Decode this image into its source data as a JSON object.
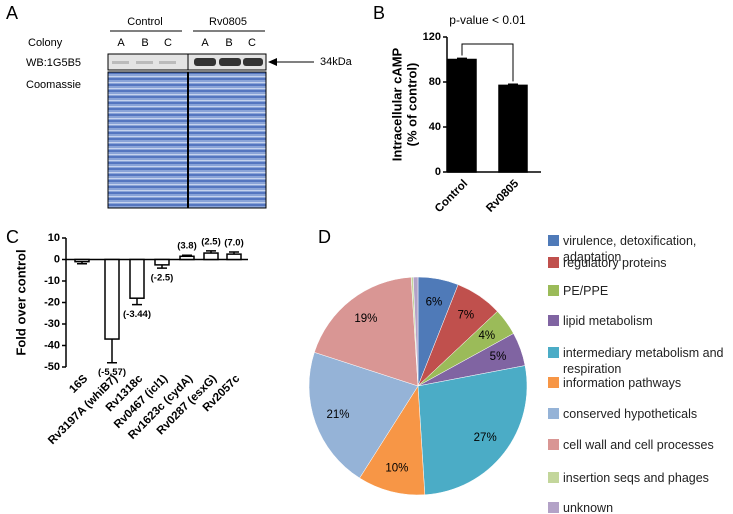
{
  "panels": [
    "A",
    "B",
    "C",
    "D"
  ],
  "blot": {
    "groups": [
      "Control",
      "Rv0805"
    ],
    "colonies": [
      "A",
      "B",
      "C"
    ],
    "row_label": "Colony",
    "wb_label": "WB:1G5B5",
    "stain_label": "Coomassie",
    "marker": "34kDa"
  },
  "chart_data": [
    {
      "type": "bar",
      "categories": [
        "Control",
        "Rv0805"
      ],
      "values": [
        100,
        77
      ],
      "errors": [
        1,
        1
      ],
      "color": "#000000",
      "ylabel": [
        "Intracellular cAMP",
        "(% of control)"
      ],
      "ylim": [
        0,
        120
      ],
      "yticks": [
        0,
        40,
        80,
        120
      ],
      "annotation": "p-value < 0.01"
    },
    {
      "type": "bar",
      "categories": [
        "16S",
        "Rv3197A (whiB7)",
        "Rv1318c",
        "Rv0467 (icl1)",
        "Rv1623c (cydA)",
        "Rv0287 (esxG)",
        "Rv2057c"
      ],
      "values": [
        -1,
        -37,
        -18,
        -2.5,
        1.5,
        3,
        2.5
      ],
      "errors": [
        1,
        11,
        3,
        1.5,
        0.5,
        1,
        1
      ],
      "color": "#000000",
      "annotations": [
        null,
        "(-5.57)",
        "(-3.44)",
        "(-2.5)",
        "(3.8)",
        "(2.5)",
        "(7.0)"
      ],
      "ylabel": "Fold over control",
      "ylim": [
        -50,
        10
      ],
      "yticks": [
        -50,
        -40,
        -30,
        -20,
        -10,
        0,
        10
      ]
    },
    {
      "type": "pie",
      "categories": [
        "virulence, detoxification, adaptation",
        "regulatory proteins",
        "PE/PPE",
        "lipid metabolism",
        "intermediary metabolism and respiration",
        "information pathways",
        "conserved hypotheticals",
        "cell wall and cell processes",
        "insertion seqs and phages",
        "unknown"
      ],
      "values": [
        6,
        7,
        4,
        5,
        27,
        10,
        21,
        19,
        0.3,
        0.7
      ],
      "value_labels": [
        "6%",
        "7%",
        "4%",
        "5%",
        "27%",
        "10%",
        "21%",
        "19%",
        null,
        null
      ],
      "colors": [
        "#4f7ab8",
        "#c0504d",
        "#9bbb59",
        "#8064a2",
        "#4bacc6",
        "#f79646",
        "#95b3d7",
        "#d99694",
        "#c3d69b",
        "#b3a2c7"
      ]
    }
  ]
}
